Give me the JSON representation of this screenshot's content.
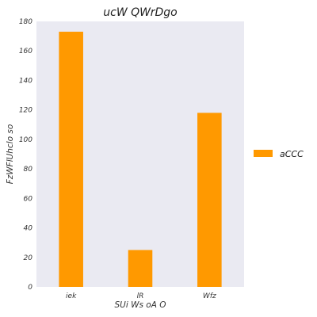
{
  "chart_data": {
    "type": "bar",
    "title": "ucW QWrDgo",
    "xlabel": "SUi Ws oA O",
    "ylabel": "FzWFlUhclo so",
    "categories": [
      "iek",
      "lR",
      "Wfz"
    ],
    "series": [
      {
        "name": "aCCC",
        "values": [
          173,
          25,
          118
        ],
        "color": "#ff9900"
      }
    ],
    "ylim": [
      0,
      180
    ],
    "yticks": [
      0,
      20,
      40,
      60,
      80,
      100,
      120,
      140,
      160,
      180
    ],
    "grid": false,
    "legend_position": "right",
    "colors": {
      "plot_background": "#eaeaf2",
      "bar": "#ff9900"
    }
  }
}
